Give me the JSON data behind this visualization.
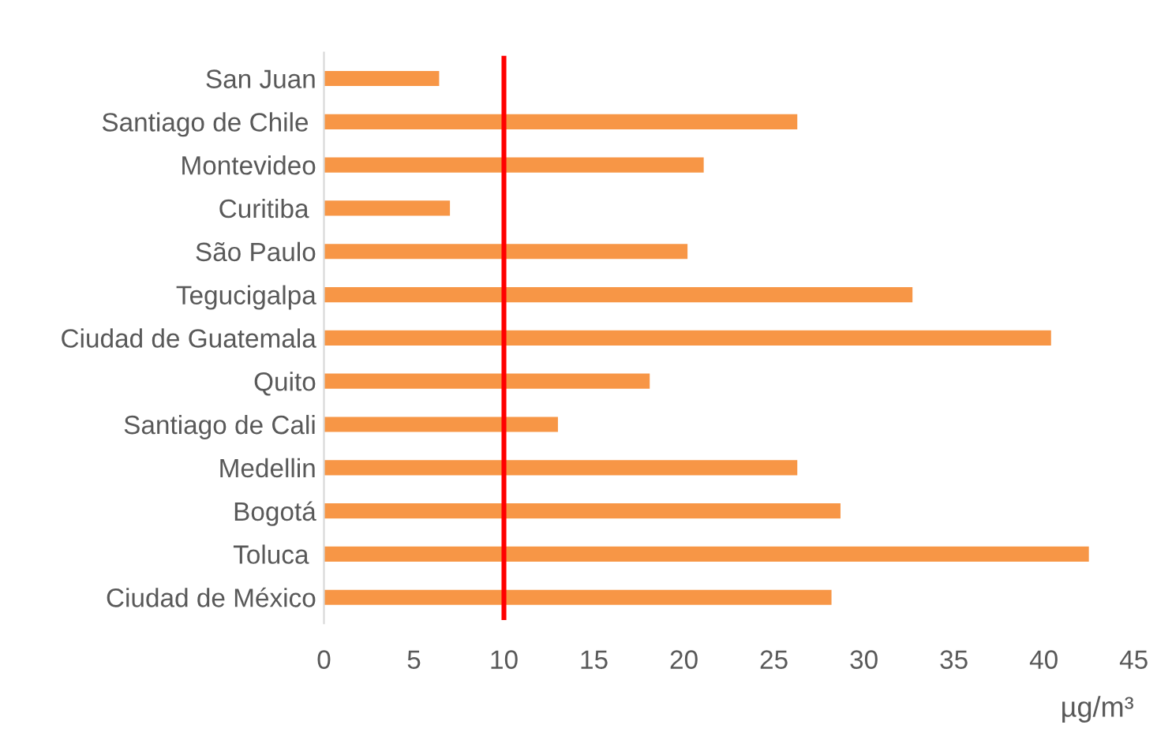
{
  "chart_data": {
    "type": "bar",
    "orientation": "horizontal",
    "xlabel": "µg/m³",
    "categories": [
      "San Juan",
      "Santiago de Chile ",
      "Montevideo",
      "Curitiba ",
      "São Paulo",
      "Tegucigalpa",
      "Ciudad de Guatemala",
      "Quito",
      "Santiago de Cali",
      "Medellin",
      "Bogotá",
      "Toluca ",
      "Ciudad de México"
    ],
    "values": [
      6.4,
      26.3,
      21.1,
      7.0,
      20.2,
      32.7,
      40.4,
      18.1,
      13.0,
      26.3,
      28.7,
      42.5,
      28.2
    ],
    "color": "#f79646",
    "xlim": [
      0,
      45
    ],
    "xticks": [
      0,
      5,
      10,
      15,
      20,
      25,
      30,
      35,
      40,
      45
    ],
    "grid": false,
    "ref_lines": [
      {
        "axis": "x",
        "value": 10,
        "color": "#ff0000"
      }
    ]
  }
}
